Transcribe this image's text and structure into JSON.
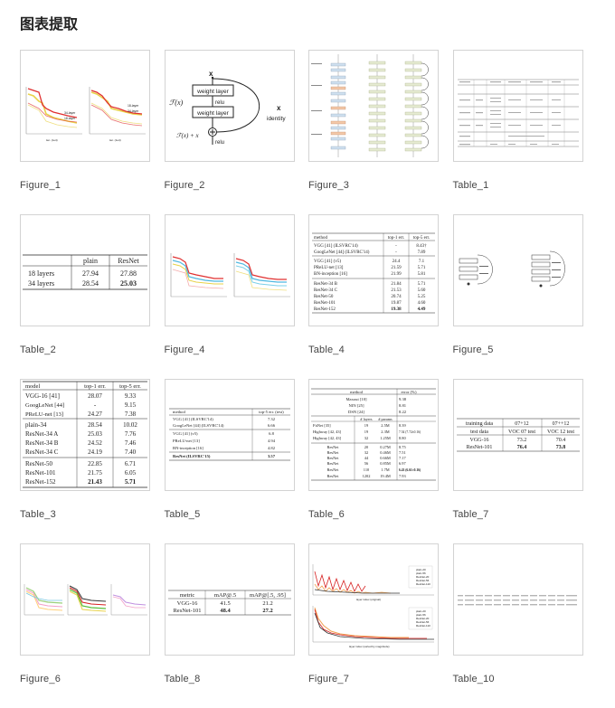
{
  "page": {
    "title": "图表提取"
  },
  "items": [
    {
      "caption": "Figure_1"
    },
    {
      "caption": "Figure_2"
    },
    {
      "caption": "Figure_3"
    },
    {
      "caption": "Table_1"
    },
    {
      "caption": "Table_2"
    },
    {
      "caption": "Figure_4"
    },
    {
      "caption": "Table_4"
    },
    {
      "caption": "Figure_5"
    },
    {
      "caption": "Table_3"
    },
    {
      "caption": "Table_5"
    },
    {
      "caption": "Table_6"
    },
    {
      "caption": "Table_7"
    },
    {
      "caption": "Figure_6"
    },
    {
      "caption": "Table_8"
    },
    {
      "caption": "Figure_7"
    },
    {
      "caption": "Table_10"
    }
  ],
  "thumbs": {
    "figure_1": {
      "labels": [
        "34-layer",
        "18-layer",
        "18-layer",
        "34-layer"
      ],
      "xlabel": "iter. (1e4)"
    },
    "figure_2": {
      "x_top": "x",
      "fx": "ℱ(x)",
      "layer1": "weight layer",
      "relu1": "relu",
      "layer2": "weight layer",
      "x_side": "x",
      "identity": "identity",
      "sum": "ℱ(x) + x",
      "relu2": "relu"
    },
    "table_2": {
      "headers": [
        "",
        "plain",
        "ResNet"
      ],
      "rows": [
        [
          "18 layers",
          "27.94",
          "27.88"
        ],
        [
          "34 layers",
          "28.54",
          "25.03"
        ]
      ]
    },
    "table_4": {
      "headers": [
        "method",
        "top-1 err.",
        "top-5 err."
      ],
      "groups": [
        [
          [
            "VGG [41] (ILSVRC'14)",
            "-",
            "8.43†"
          ],
          [
            "GoogLeNet [44] (ILSVRC'14)",
            "-",
            "7.89"
          ]
        ],
        [
          [
            "VGG [41] (v5)",
            "24.4",
            "7.1"
          ],
          [
            "PReLU-net [13]",
            "21.59",
            "5.71"
          ],
          [
            "BN-inception [16]",
            "21.99",
            "5.81"
          ]
        ],
        [
          [
            "ResNet-34 B",
            "21.84",
            "5.71"
          ],
          [
            "ResNet-34 C",
            "21.53",
            "5.60"
          ],
          [
            "ResNet-50",
            "20.74",
            "5.25"
          ],
          [
            "ResNet-101",
            "19.87",
            "4.60"
          ],
          [
            "ResNet-152",
            "19.38",
            "4.49"
          ]
        ]
      ]
    },
    "table_3": {
      "headers": [
        "model",
        "top-1 err.",
        "top-5 err."
      ],
      "groups": [
        [
          [
            "VGG-16 [41]",
            "28.07",
            "9.33"
          ],
          [
            "GoogLeNet [44]",
            "-",
            "9.15"
          ],
          [
            "PReLU-net [13]",
            "24.27",
            "7.38"
          ]
        ],
        [
          [
            "plain-34",
            "28.54",
            "10.02"
          ],
          [
            "ResNet-34 A",
            "25.03",
            "7.76"
          ],
          [
            "ResNet-34 B",
            "24.52",
            "7.46"
          ],
          [
            "ResNet-34 C",
            "24.19",
            "7.40"
          ]
        ],
        [
          [
            "ResNet-50",
            "22.85",
            "6.71"
          ],
          [
            "ResNet-101",
            "21.75",
            "6.05"
          ],
          [
            "ResNet-152",
            "21.43",
            "5.71"
          ]
        ]
      ]
    },
    "table_5": {
      "headers": [
        "method",
        "top-5 err. (test)"
      ],
      "groups": [
        [
          [
            "VGG [41] (ILSVRC'14)",
            "7.32"
          ],
          [
            "GoogLeNet [44] (ILSVRC'14)",
            "6.66"
          ]
        ],
        [
          [
            "VGG [41] (v5)",
            "6.8"
          ],
          [
            "PReLU-net [13]",
            "4.94"
          ],
          [
            "BN-inception [16]",
            "4.82"
          ]
        ],
        [
          [
            "ResNet (ILSVRC'15)",
            "3.57"
          ]
        ]
      ]
    },
    "table_6": {
      "headers": [
        "method",
        "",
        "",
        "error (%)"
      ],
      "top": [
        [
          "Maxout [10]",
          "9.38"
        ],
        [
          "NIN [25]",
          "8.81"
        ],
        [
          "DSN [24]",
          "8.22"
        ]
      ],
      "subheaders": [
        "",
        "# layers",
        "# params",
        ""
      ],
      "rows": [
        [
          "FitNet [35]",
          "19",
          "2.5M",
          "8.39"
        ],
        [
          "Highway [42, 43]",
          "19",
          "2.3M",
          "7.54 (7.72±0.16)"
        ],
        [
          "Highway [42, 43]",
          "32",
          "1.25M",
          "8.80"
        ],
        [
          "ResNet",
          "20",
          "0.27M",
          "8.75"
        ],
        [
          "ResNet",
          "32",
          "0.46M",
          "7.51"
        ],
        [
          "ResNet",
          "44",
          "0.66M",
          "7.17"
        ],
        [
          "ResNet",
          "56",
          "0.85M",
          "6.97"
        ],
        [
          "ResNet",
          "110",
          "1.7M",
          "6.43 (6.61±0.16)"
        ],
        [
          "ResNet",
          "1202",
          "19.4M",
          "7.93"
        ]
      ]
    },
    "table_7": {
      "headers": [
        "training data",
        "07+12",
        "07++12"
      ],
      "rows": [
        [
          "test data",
          "VOC 07 test",
          "VOC 12 test"
        ],
        [
          "VGG-16",
          "73.2",
          "70.4"
        ],
        [
          "ResNet-101",
          "76.4",
          "73.8"
        ]
      ]
    },
    "table_8": {
      "headers": [
        "metric",
        "mAP@.5",
        "mAP@[.5, .95]"
      ],
      "rows": [
        [
          "VGG-16",
          "41.5",
          "21.2"
        ],
        [
          "ResNet-101",
          "48.4",
          "27.2"
        ]
      ]
    },
    "figure_7": {
      "legend_top": [
        "plain-20",
        "plain-56",
        "ResNet-20",
        "ResNet-56",
        "ResNet-110"
      ],
      "xlabel_top": "layer index (original)",
      "legend_bottom": [
        "plain-20",
        "plain-56",
        "ResNet-20",
        "ResNet-56",
        "ResNet-110"
      ],
      "xlabel_bottom": "layer index (sorted by magnitude)"
    }
  },
  "colors": {
    "border": "#d3d3d3",
    "caption": "#444444",
    "accent_red": "#e03030",
    "accent_yellow": "#e8d24a"
  }
}
